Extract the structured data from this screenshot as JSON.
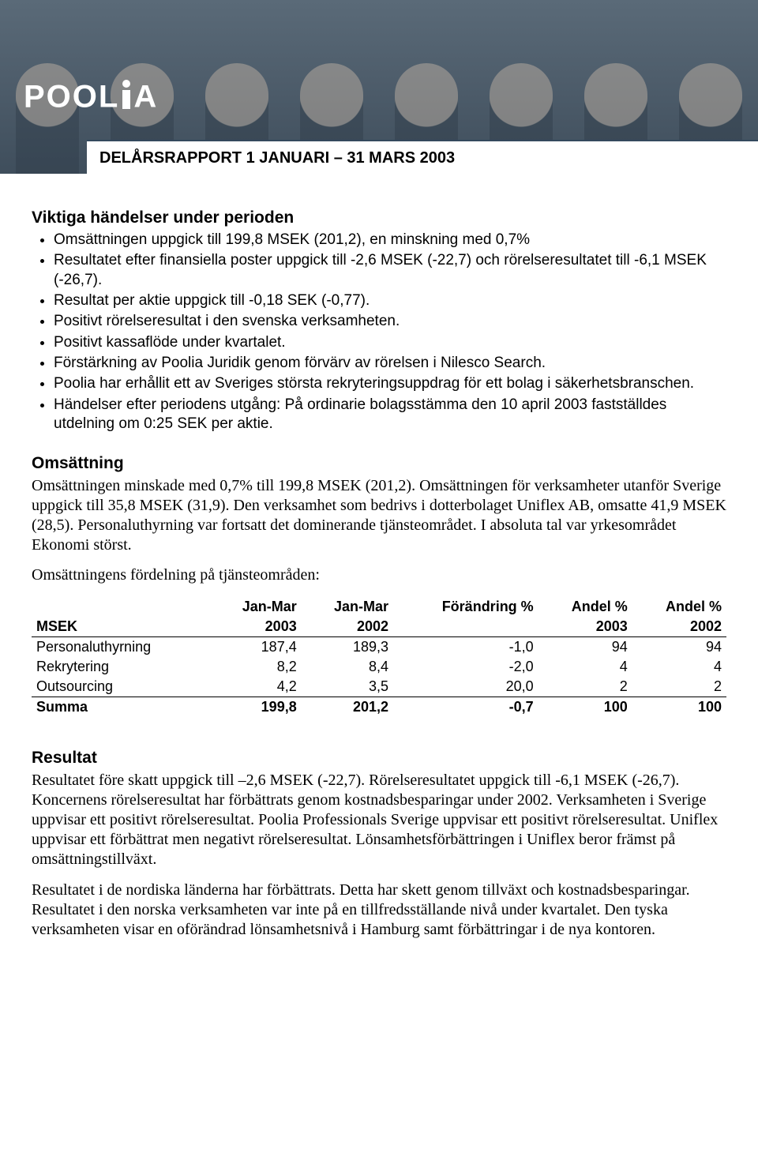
{
  "hero": {
    "logo_text": "POOL",
    "logo_text2": "A",
    "title": "DELÅRSRAPPORT 1 JANUARI – 31 MARS 2003"
  },
  "section1": {
    "heading": "Viktiga händelser under perioden",
    "bullets": [
      "Omsättningen uppgick till 199,8 MSEK (201,2), en minskning med 0,7%",
      "Resultatet efter finansiella poster uppgick till -2,6 MSEK (-22,7) och rörelseresultatet till -6,1 MSEK (-26,7).",
      "Resultat per aktie uppgick till -0,18 SEK (-0,77).",
      "Positivt rörelseresultat i den svenska verksamheten.",
      "Positivt kassaflöde under kvartalet.",
      "Förstärkning av Poolia Juridik genom förvärv av rörelsen i Nilesco Search.",
      "Poolia har erhållit ett av Sveriges största rekryteringsuppdrag för ett bolag i säkerhetsbranschen.",
      "Händelser efter periodens utgång: På ordinarie bolagsstämma den 10 april 2003 fastställdes utdelning om 0:25 SEK per aktie."
    ]
  },
  "section2": {
    "heading": "Omsättning",
    "body": "Omsättningen minskade med 0,7% till 199,8 MSEK (201,2). Omsättningen för verksamheter utanför Sverige uppgick till 35,8 MSEK (31,9). Den verksamhet som bedrivs i dotterbolaget Uniflex AB, omsatte 41,9 MSEK (28,5). Personaluthyrning var fortsatt det dominerande tjänsteområdet. I absoluta tal var yrkesområdet Ekonomi störst.",
    "lead": "Omsättningens fördelning på tjänsteområden:"
  },
  "table": {
    "col_label": "MSEK",
    "headers_line1": [
      "",
      "Jan-Mar",
      "Jan-Mar",
      "Förändring %",
      "Andel %",
      "Andel %"
    ],
    "headers_line2": [
      "MSEK",
      "2003",
      "2002",
      "",
      "2003",
      "2002"
    ],
    "rows": [
      {
        "label": "Personaluthyrning",
        "v": [
          "187,4",
          "189,3",
          "-1,0",
          "94",
          "94"
        ]
      },
      {
        "label": "Rekrytering",
        "v": [
          "8,2",
          "8,4",
          "-2,0",
          "4",
          "4"
        ]
      },
      {
        "label": "Outsourcing",
        "v": [
          "4,2",
          "3,5",
          "20,0",
          "2",
          "2"
        ]
      }
    ],
    "totals": {
      "label": "Summa",
      "v": [
        "199,8",
        "201,2",
        "-0,7",
        "100",
        "100"
      ]
    }
  },
  "section3": {
    "heading": "Resultat",
    "body1": "Resultatet före skatt uppgick till –2,6 MSEK (-22,7). Rörelseresultatet uppgick till -6,1 MSEK (-26,7). Koncernens rörelseresultat har förbättrats genom kostnadsbesparingar under 2002. Verksamheten i Sverige uppvisar ett positivt rörelseresultat. Poolia Professionals Sverige uppvisar ett positivt rörelseresultat. Uniflex uppvisar ett förbättrat men negativt rörelseresultat. Lönsamhetsförbättringen i Uniflex beror främst på omsättningstillväxt.",
    "body2": "Resultatet i de nordiska länderna har förbättrats. Detta har skett genom tillväxt och kostnadsbesparingar. Resultatet i den norska verksamheten var inte på en tillfredsställande nivå under kvartalet. Den tyska verksamheten visar en oförändrad lönsamhetsnivå i Hamburg samt förbättringar i de nya kontoren."
  },
  "colors": {
    "hero_bg_top": "#5a6a78",
    "hero_bg_bottom": "#3f4e5c",
    "title_border": "#34495e",
    "text": "#000000",
    "bg": "#ffffff"
  }
}
